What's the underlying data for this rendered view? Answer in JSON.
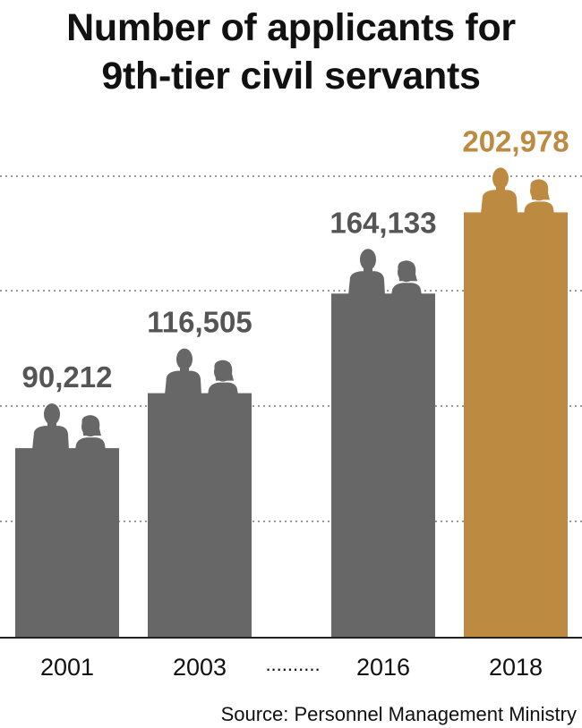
{
  "title_lines": [
    "Number of applicants for",
    "9th-tier civil servants"
  ],
  "source": "Source: Personnel Management Ministry",
  "chart_data": {
    "type": "bar",
    "categories": [
      "2001",
      "2003",
      "2016",
      "2018"
    ],
    "values": [
      90212,
      116505,
      164133,
      202978
    ],
    "value_labels": [
      "90,212",
      "116,505",
      "164,133",
      "202,978"
    ],
    "ylim": [
      0,
      210000
    ],
    "grid": true,
    "axis_break": "..........",
    "colors": {
      "bar": "#676767",
      "highlight": "#bd8a42",
      "grid": "#9a9a9a",
      "label": "#555555"
    },
    "highlight_index": 3
  }
}
